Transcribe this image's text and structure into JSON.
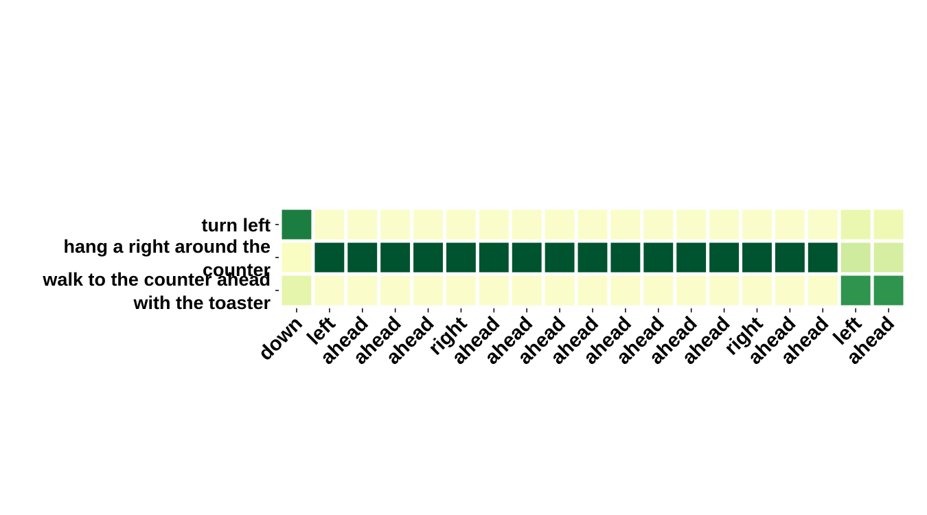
{
  "chart_data": {
    "type": "heatmap",
    "title": "",
    "xlabel": "",
    "ylabel": "",
    "x_labels": [
      "down",
      "left",
      "ahead",
      "ahead",
      "ahead",
      "right",
      "ahead",
      "ahead",
      "ahead",
      "ahead",
      "ahead",
      "ahead",
      "ahead",
      "ahead",
      "right",
      "ahead",
      "ahead",
      "left",
      "ahead"
    ],
    "y_labels": [
      [
        "turn left"
      ],
      [
        "hang a right around the",
        "counter"
      ],
      [
        "walk to the counter ahead",
        "with the toaster"
      ]
    ],
    "colormap": "YlGn",
    "value_range": [
      0,
      1
    ],
    "colorbar": false,
    "values": [
      [
        0.78,
        0.08,
        0.08,
        0.08,
        0.08,
        0.08,
        0.08,
        0.08,
        0.08,
        0.08,
        0.08,
        0.08,
        0.08,
        0.08,
        0.08,
        0.08,
        0.08,
        0.18,
        0.16
      ],
      [
        0.1,
        0.95,
        0.95,
        0.95,
        0.95,
        0.95,
        0.95,
        0.95,
        0.95,
        0.95,
        0.95,
        0.95,
        0.95,
        0.95,
        0.95,
        0.95,
        0.95,
        0.28,
        0.26
      ],
      [
        0.2,
        0.08,
        0.08,
        0.08,
        0.08,
        0.08,
        0.08,
        0.08,
        0.08,
        0.08,
        0.08,
        0.08,
        0.08,
        0.08,
        0.08,
        0.08,
        0.08,
        0.7,
        0.7
      ]
    ]
  }
}
